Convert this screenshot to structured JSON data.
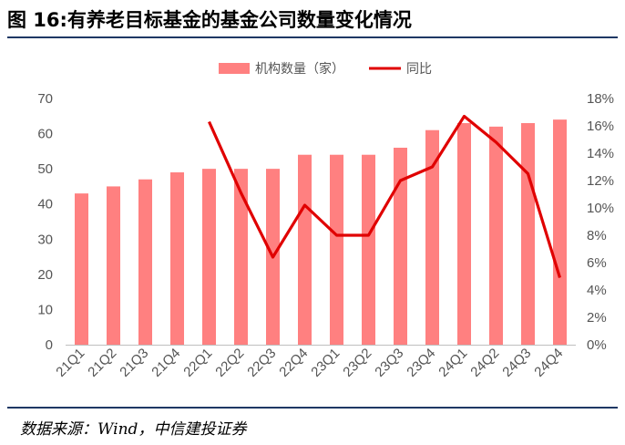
{
  "title": "图 16:有养老目标基金的基金公司数量变化情况",
  "source": "数据来源：Wind，中信建投证券",
  "chart_data": {
    "type": "bar+line",
    "categories": [
      "21Q1",
      "21Q2",
      "21Q3",
      "21Q4",
      "22Q1",
      "22Q2",
      "22Q3",
      "22Q4",
      "23Q1",
      "23Q2",
      "23Q3",
      "23Q4",
      "24Q1",
      "24Q2",
      "24Q3",
      "24Q4"
    ],
    "series": [
      {
        "name": "机构数量（家）",
        "type": "bar",
        "axis": "left",
        "color": "#ff8080",
        "values": [
          43,
          45,
          47,
          49,
          50,
          50,
          50,
          54,
          54,
          54,
          56,
          61,
          63,
          62,
          63,
          64
        ]
      },
      {
        "name": "同比",
        "type": "line",
        "axis": "right",
        "color": "#e00000",
        "values": [
          null,
          null,
          null,
          null,
          16.3,
          11.1,
          6.4,
          10.2,
          8.0,
          8.0,
          12.0,
          13.0,
          16.7,
          14.8,
          12.5,
          4.9
        ]
      }
    ],
    "y_left": {
      "min": 0,
      "max": 70,
      "ticks": [
        "0",
        "10",
        "20",
        "30",
        "40",
        "50",
        "60",
        "70"
      ]
    },
    "y_right": {
      "min": 0,
      "max": 18,
      "ticks": [
        "0%",
        "2%",
        "4%",
        "6%",
        "8%",
        "10%",
        "12%",
        "14%",
        "16%",
        "18%"
      ]
    },
    "grid": false,
    "legend": "top-center"
  }
}
